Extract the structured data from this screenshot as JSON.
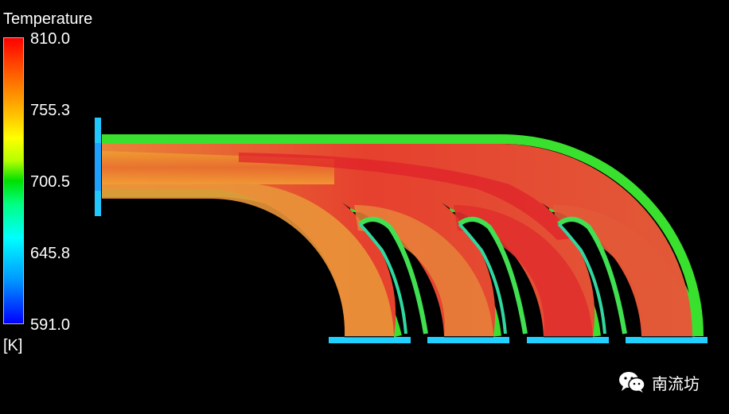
{
  "legend": {
    "title": "Temperature",
    "unit": "[K]",
    "ticks": [
      "810.0",
      "755.3",
      "700.5",
      "645.8",
      "591.0"
    ],
    "min": 591.0,
    "max": 810.0,
    "colormap": [
      "#0000ff",
      "#00ffff",
      "#00e000",
      "#ffff00",
      "#ff0000"
    ]
  },
  "watermark": {
    "icon": "wechat-icon",
    "text": "南流坊"
  },
  "background": "#000000"
}
